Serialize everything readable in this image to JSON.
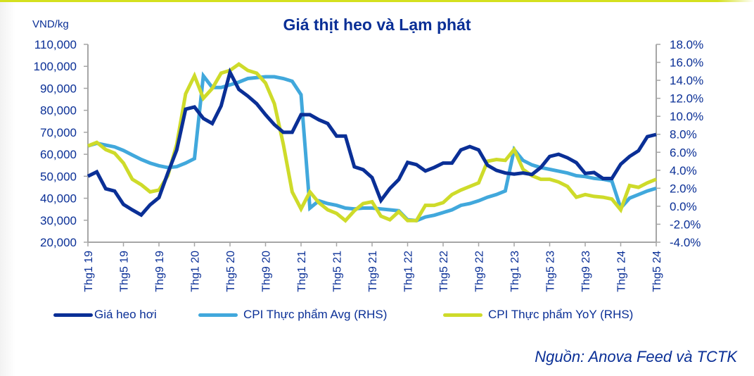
{
  "page": {
    "title": "Giá thịt heo và Lạm phát",
    "unit_label": "VND/kg",
    "source": "Nguồn: Anova Feed và TCTK",
    "colors": {
      "pork_price": "#0a2f96",
      "cpi_avg": "#41a8dc",
      "cpi_yoy": "#cedb2a",
      "text": "#0a2f96",
      "axis": "#a6a6a6",
      "accent_rule": "#d4e01f"
    }
  },
  "legend": [
    {
      "label": "Giá heo hơi",
      "color": "#0a2f96"
    },
    {
      "label": "CPI Thực phẩm Avg (RHS)",
      "color": "#41a8dc"
    },
    {
      "label": "CPI Thực phẩm YoY (RHS)",
      "color": "#cedb2a"
    }
  ],
  "chart_data": {
    "type": "line",
    "title": "Giá thịt heo và Lạm phát",
    "xlabel": "",
    "ylabel": "VND/kg",
    "ylabel_right": "%",
    "ylim": [
      20000,
      110000
    ],
    "ylim_right": [
      -4.0,
      18.0
    ],
    "grid": false,
    "legend_position": "bottom",
    "y_ticks_left": [
      "110,000",
      "100,000",
      "90,000",
      "80,000",
      "70,000",
      "60,000",
      "50,000",
      "40,000",
      "30,000",
      "20,000"
    ],
    "y_ticks_right": [
      "18.0%",
      "16.0%",
      "14.0%",
      "12.0%",
      "10.0%",
      "8.0%",
      "6.0%",
      "4.0%",
      "2.0%",
      "0.0%",
      "-2.0%",
      "-4.0%"
    ],
    "x_tick_labels": [
      "Thg1 19",
      "Thg5 19",
      "Thg9 19",
      "Thg1 20",
      "Thg5 20",
      "Thg9 20",
      "Thg1 21",
      "Thg5 21",
      "Thg9 21",
      "Thg1 22",
      "Thg5 22",
      "Thg9 22",
      "Thg1 23",
      "Thg5 23",
      "Thg9 23",
      "Thg1 24",
      "Thg5 24"
    ],
    "x_start": "Thg1 19",
    "x_end": "Thg5 24",
    "x_frequency": "monthly",
    "series": [
      {
        "name": "Giá heo hơi",
        "axis": "left",
        "color": "#0a2f96",
        "values": [
          50000,
          52000,
          44300,
          43300,
          37200,
          34700,
          32400,
          37000,
          40300,
          51500,
          62000,
          80500,
          81500,
          76300,
          74000,
          82000,
          97300,
          89500,
          86500,
          83000,
          78000,
          73500,
          70000,
          70000,
          78000,
          78000,
          75700,
          74000,
          68300,
          68300,
          54300,
          53000,
          49400,
          39000,
          44400,
          48500,
          56300,
          55300,
          52400,
          54000,
          56000,
          56000,
          62000,
          63500,
          62000,
          55000,
          52700,
          51500,
          51000,
          51500,
          50800,
          54000,
          59000,
          60000,
          58400,
          56200,
          51300,
          51700,
          49000,
          49000,
          55500,
          59000,
          61600,
          68000,
          69000
        ]
      },
      {
        "name": "CPI Thực phẩm Avg (RHS)",
        "axis": "right",
        "color": "#41a8dc",
        "values": [
          6.7,
          7.0,
          6.8,
          6.6,
          6.2,
          5.7,
          5.2,
          4.8,
          4.5,
          4.3,
          4.4,
          4.8,
          5.3,
          14.5,
          13.2,
          13.2,
          13.5,
          13.8,
          14.2,
          14.3,
          14.4,
          14.4,
          14.2,
          13.9,
          12.4,
          -0.2,
          0.6,
          0.3,
          0.1,
          -0.2,
          -0.3,
          -0.2,
          -0.2,
          -0.3,
          -0.4,
          -0.5,
          -1.5,
          -1.6,
          -1.2,
          -1.0,
          -0.7,
          -0.4,
          0.1,
          0.3,
          0.6,
          1.0,
          1.3,
          1.7,
          6.3,
          5.1,
          4.6,
          4.3,
          4.1,
          3.9,
          3.7,
          3.4,
          3.3,
          3.1,
          3.0,
          2.8,
          -0.2,
          0.9,
          1.3,
          1.7,
          2.0
        ]
      },
      {
        "name": "CPI Thực phẩm YoY (RHS)",
        "axis": "right",
        "color": "#cedb2a",
        "values": [
          6.7,
          7.1,
          6.3,
          5.9,
          4.8,
          3.0,
          2.4,
          1.6,
          1.8,
          3.4,
          6.9,
          12.5,
          14.5,
          12.0,
          13.1,
          14.8,
          15.1,
          15.8,
          15.1,
          14.8,
          13.7,
          11.4,
          6.9,
          1.6,
          -0.3,
          1.6,
          0.4,
          -0.4,
          -0.8,
          -1.6,
          -0.5,
          0.3,
          0.5,
          -1.1,
          -1.5,
          -0.6,
          -1.6,
          -1.6,
          0.1,
          0.1,
          0.4,
          1.3,
          1.8,
          2.2,
          2.6,
          5.0,
          5.2,
          5.1,
          6.3,
          4.1,
          3.4,
          3.0,
          3.0,
          2.7,
          2.2,
          1.0,
          1.3,
          1.1,
          1.0,
          0.8,
          -0.4,
          2.3,
          2.1,
          2.6,
          3.0
        ]
      }
    ]
  }
}
